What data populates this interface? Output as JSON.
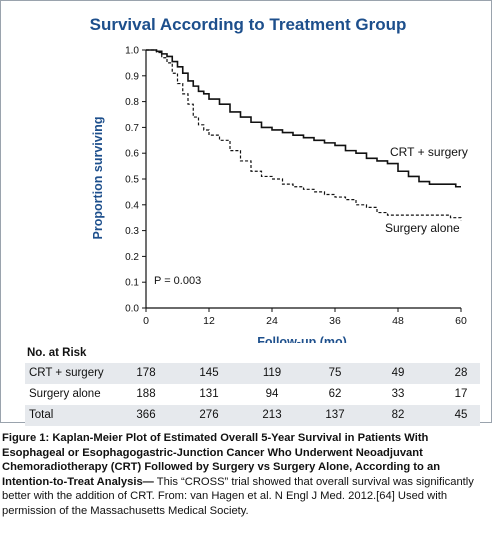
{
  "figure": {
    "title": "Survival According to Treatment Group",
    "risk_table_title": "No. at Risk",
    "caption_bold": "Figure 1: Kaplan-Meier Plot of Estimated Overall 5-Year Survival in Patients With Esophageal or Esophagogastric-Junction Cancer Who Underwent Neoadjuvant Chemoradiotherapy (CRT) Followed by Surgery vs Surgery Alone, According to an Intention-to-Treat Analysis—",
    "caption_text": " This “CROSS” trial showed that overall survival was significantly better with the addition of CRT. From: van Hagen et al. N Engl J Med. 2012.[64] Used with permission of the Massachusetts Medical Society."
  },
  "chart_data": {
    "type": "line",
    "title": "Survival According to Treatment Group",
    "xlabel": "Follow-up (mo)",
    "ylabel": "Proportion surviving",
    "xlim": [
      0,
      60
    ],
    "ylim": [
      0,
      1.0
    ],
    "x_ticks": [
      0,
      12,
      24,
      36,
      48,
      60
    ],
    "y_ticks": [
      0,
      0.1,
      0.2,
      0.3,
      0.4,
      0.5,
      0.6,
      0.7,
      0.8,
      0.9,
      1.0
    ],
    "y_tick_labels": [
      "0.0",
      "0.1",
      "0.2",
      "0.3",
      "0.4",
      "0.5",
      "0.6",
      "0.7",
      "0.8",
      "0.9",
      "1.0"
    ],
    "grid": false,
    "annotation": "P = 0.003",
    "series": [
      {
        "name": "CRT + surgery",
        "style": "solid",
        "points": [
          [
            0,
            1.0
          ],
          [
            2,
            0.995
          ],
          [
            3,
            0.985
          ],
          [
            4,
            0.975
          ],
          [
            5,
            0.955
          ],
          [
            6,
            0.935
          ],
          [
            7,
            0.91
          ],
          [
            8,
            0.88
          ],
          [
            9,
            0.86
          ],
          [
            10,
            0.84
          ],
          [
            11,
            0.83
          ],
          [
            12,
            0.81
          ],
          [
            14,
            0.79
          ],
          [
            16,
            0.76
          ],
          [
            18,
            0.74
          ],
          [
            20,
            0.72
          ],
          [
            22,
            0.7
          ],
          [
            24,
            0.69
          ],
          [
            26,
            0.68
          ],
          [
            28,
            0.67
          ],
          [
            30,
            0.66
          ],
          [
            32,
            0.65
          ],
          [
            34,
            0.64
          ],
          [
            36,
            0.63
          ],
          [
            38,
            0.61
          ],
          [
            40,
            0.6
          ],
          [
            42,
            0.58
          ],
          [
            44,
            0.57
          ],
          [
            46,
            0.56
          ],
          [
            48,
            0.53
          ],
          [
            50,
            0.51
          ],
          [
            52,
            0.49
          ],
          [
            54,
            0.48
          ],
          [
            56,
            0.48
          ],
          [
            58,
            0.48
          ],
          [
            59,
            0.47
          ],
          [
            60,
            0.47
          ]
        ]
      },
      {
        "name": "Surgery alone",
        "style": "dashed",
        "points": [
          [
            0,
            1.0
          ],
          [
            2,
            0.99
          ],
          [
            3,
            0.97
          ],
          [
            4,
            0.95
          ],
          [
            5,
            0.91
          ],
          [
            6,
            0.87
          ],
          [
            7,
            0.83
          ],
          [
            8,
            0.79
          ],
          [
            9,
            0.74
          ],
          [
            10,
            0.71
          ],
          [
            11,
            0.69
          ],
          [
            12,
            0.67
          ],
          [
            14,
            0.65
          ],
          [
            16,
            0.61
          ],
          [
            18,
            0.57
          ],
          [
            20,
            0.53
          ],
          [
            22,
            0.51
          ],
          [
            24,
            0.5
          ],
          [
            26,
            0.48
          ],
          [
            28,
            0.47
          ],
          [
            30,
            0.46
          ],
          [
            32,
            0.45
          ],
          [
            34,
            0.44
          ],
          [
            36,
            0.43
          ],
          [
            38,
            0.42
          ],
          [
            40,
            0.4
          ],
          [
            42,
            0.39
          ],
          [
            44,
            0.37
          ],
          [
            46,
            0.36
          ],
          [
            48,
            0.36
          ],
          [
            52,
            0.36
          ],
          [
            56,
            0.36
          ],
          [
            58,
            0.35
          ],
          [
            60,
            0.34
          ]
        ]
      }
    ],
    "risk_table": {
      "times": [
        0,
        12,
        24,
        36,
        48,
        60
      ],
      "rows": [
        {
          "label": "CRT + surgery",
          "values": [
            178,
            145,
            119,
            75,
            49,
            28
          ]
        },
        {
          "label": "Surgery alone",
          "values": [
            188,
            131,
            94,
            62,
            33,
            17
          ]
        },
        {
          "label": "Total",
          "values": [
            366,
            276,
            213,
            137,
            82,
            45
          ]
        }
      ]
    },
    "colors": {
      "title": "#1d4f8c",
      "axis_label": "#1d4f8c",
      "lines": "#111111",
      "shade": "#e6e9ed"
    }
  }
}
